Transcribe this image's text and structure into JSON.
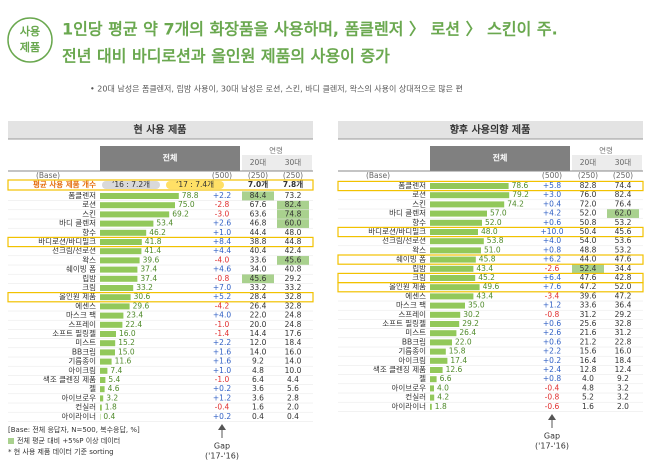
{
  "header": {
    "badge": [
      "사용",
      "제품"
    ],
    "title_lines": [
      "1인당 평균 약 7개의 화장품을 사용하며, 폼클렌저 〉 로션 〉 스킨이 주.",
      "전년 대비 바디로션과 올인원 제품의 사용이 증가"
    ],
    "note": "• 20대 남성은 폼클렌저, 립밤 사용이, 30대 남성은 로션, 스킨, 바디 클렌저, 왁스의 사용이 상대적으로 많은 편"
  },
  "tables": [
    {
      "title": "현 사용 제품",
      "col_total": "전체",
      "col_age": "연령",
      "age_cols": [
        "20대",
        "30대"
      ],
      "base_label": "(Base)",
      "base": [
        "(500)",
        "(250)",
        "(250)"
      ],
      "average": {
        "label": "평균 사용 제품 개수",
        "prev": "‘16 : 7.2개",
        "curr": "‘17 : 7.4개",
        "age20": "7.0개",
        "age30": "7.8개"
      },
      "xlim": [
        0,
        100
      ],
      "rows": [
        [
          "폼클렌저",
          78.8,
          "78.8",
          "+2.2",
          "84.4",
          "73.2"
        ],
        [
          "로션",
          75.0,
          "75.0",
          "-2.8",
          "67.6",
          "82.4"
        ],
        [
          "스킨",
          69.2,
          "69.2",
          "-3.0",
          "63.6",
          "74.8"
        ],
        [
          "바디 클렌저",
          53.4,
          "53.4",
          "+2.6",
          "46.8",
          "60.0"
        ],
        [
          "향수",
          46.2,
          "46.2",
          "+1.0",
          "44.4",
          "48.0"
        ],
        [
          "바디로션/바디밀크",
          41.8,
          "41.8",
          "+8.4",
          "38.8",
          "44.8"
        ],
        [
          "선크림/선로션",
          41.4,
          "41.4",
          "+4.4",
          "40.4",
          "42.4"
        ],
        [
          "왁스",
          39.6,
          "39.6",
          "-4.0",
          "33.6",
          "45.6"
        ],
        [
          "쉐이빙 폼",
          37.4,
          "37.4",
          "+4.6",
          "34.0",
          "40.8"
        ],
        [
          "립밤",
          37.4,
          "37.4",
          "-0.8",
          "45.6",
          "29.2"
        ],
        [
          "크림",
          33.2,
          "33.2",
          "+7.0",
          "33.2",
          "33.2"
        ],
        [
          "올인원 제품",
          30.6,
          "30.6",
          "+5.2",
          "28.4",
          "32.8"
        ],
        [
          "에센스",
          29.6,
          "29.6",
          "-4.2",
          "26.4",
          "32.8"
        ],
        [
          "마스크 팩",
          23.4,
          "23.4",
          "+4.0",
          "22.0",
          "24.8"
        ],
        [
          "스프레이",
          22.4,
          "22.4",
          "-1.0",
          "20.0",
          "24.8"
        ],
        [
          "소프트 필링젤",
          16.0,
          "16.0",
          "-1.4",
          "14.4",
          "17.6"
        ],
        [
          "미스트",
          15.2,
          "15.2",
          "+2.2",
          "12.0",
          "18.4"
        ],
        [
          "BB크림",
          15.0,
          "15.0",
          "+1.6",
          "14.0",
          "16.0"
        ],
        [
          "기름종이",
          11.6,
          "11.6",
          "+1.6",
          "9.2",
          "14.0"
        ],
        [
          "아이크림",
          7.4,
          "7.4",
          "+1.0",
          "4.8",
          "10.0"
        ],
        [
          "색조 클렌징 제품",
          5.4,
          "5.4",
          "-1.0",
          "6.4",
          "4.4"
        ],
        [
          "젤",
          4.6,
          "4.6",
          "+0.2",
          "3.6",
          "5.6"
        ],
        [
          "아이브로우",
          3.2,
          "3.2",
          "+1.2",
          "3.6",
          "2.8"
        ],
        [
          "컨실러",
          1.8,
          "1.8",
          "-0.4",
          "1.6",
          "2.0"
        ],
        [
          "아이라이너",
          0.4,
          "0.4",
          "+0.2",
          "0.4",
          "0.4"
        ]
      ],
      "highlighted_rows": [
        5,
        11
      ],
      "highlight_cells": [
        [
          0,
          4
        ],
        [
          1,
          5
        ],
        [
          2,
          5
        ],
        [
          3,
          5
        ],
        [
          7,
          5
        ],
        [
          9,
          4
        ]
      ]
    },
    {
      "title": "향후 사용의향 제품",
      "col_total": "전체",
      "col_age": "연령",
      "age_cols": [
        "20대",
        "30대"
      ],
      "base_label": "(Base)",
      "base": [
        "(500)",
        "(250)",
        "(250)"
      ],
      "xlim": [
        0,
        100
      ],
      "rows": [
        [
          "폼클렌저",
          78.6,
          "78.6",
          "+5.8",
          "82.8",
          "74.4"
        ],
        [
          "로션",
          79.2,
          "79.2",
          "+3.0",
          "76.0",
          "82.4"
        ],
        [
          "스킨",
          74.2,
          "74.2",
          "+0.4",
          "72.0",
          "76.4"
        ],
        [
          "바디 클렌저",
          57.0,
          "57.0",
          "+4.2",
          "52.0",
          "62.0"
        ],
        [
          "향수",
          52.0,
          "52.0",
          "+0.6",
          "50.8",
          "53.2"
        ],
        [
          "바디로션/바디밀크",
          48.0,
          "48.0",
          "+10.0",
          "50.4",
          "45.6"
        ],
        [
          "선크림/선로션",
          53.8,
          "53.8",
          "+4.0",
          "54.0",
          "53.6"
        ],
        [
          "왁스",
          51.0,
          "51.0",
          "+0.8",
          "48.8",
          "53.2"
        ],
        [
          "쉐이빙 폼",
          45.8,
          "45.8",
          "+6.2",
          "44.0",
          "47.6"
        ],
        [
          "립밤",
          43.4,
          "43.4",
          "-2.6",
          "52.4",
          "34.4"
        ],
        [
          "크림",
          45.2,
          "45.2",
          "+6.4",
          "47.6",
          "42.8"
        ],
        [
          "올인원 제품",
          49.6,
          "49.6",
          "+7.6",
          "47.2",
          "52.0"
        ],
        [
          "에센스",
          43.4,
          "43.4",
          "-3.4",
          "39.6",
          "47.2"
        ],
        [
          "마스크 팩",
          35.0,
          "35.0",
          "+1.2",
          "33.6",
          "36.4"
        ],
        [
          "스프레이",
          30.2,
          "30.2",
          "-0.8",
          "31.2",
          "29.2"
        ],
        [
          "소프트 필링젤",
          29.2,
          "29.2",
          "+0.6",
          "25.6",
          "32.8"
        ],
        [
          "미스트",
          26.4,
          "26.4",
          "+2.6",
          "21.6",
          "31.2"
        ],
        [
          "BB크림",
          22.0,
          "22.0",
          "+0.6",
          "21.2",
          "22.8"
        ],
        [
          "기름종이",
          15.8,
          "15.8",
          "+2.2",
          "15.6",
          "16.0"
        ],
        [
          "아이크림",
          17.4,
          "17.4",
          "+0.2",
          "16.4",
          "18.4"
        ],
        [
          "색조 클렌징 제품",
          12.6,
          "12.6",
          "+2.4",
          "12.8",
          "12.4"
        ],
        [
          "젤",
          6.6,
          "6.6",
          "+0.8",
          "4.0",
          "9.2"
        ],
        [
          "아이브로우",
          4.0,
          "4.0",
          "-0.4",
          "4.8",
          "3.2"
        ],
        [
          "컨실러",
          4.2,
          "4.2",
          "-0.8",
          "5.2",
          "3.2"
        ],
        [
          "아이라이너",
          1.8,
          "1.8",
          "-0.6",
          "1.6",
          "2.0"
        ]
      ],
      "highlighted_rows": [
        0,
        5,
        8,
        10,
        11
      ],
      "highlight_cells": [
        [
          3,
          5
        ],
        [
          9,
          4
        ]
      ]
    }
  ],
  "footnotes": [
    "[Base: 전체 응답자, N=500, 복수응답, %]",
    "전체 평균 대비 +5%P 이상 데이터",
    "* 현 사용 제품 데이터 기준 sorting"
  ],
  "gap_label": [
    "Gap",
    "('17-'16)"
  ]
}
